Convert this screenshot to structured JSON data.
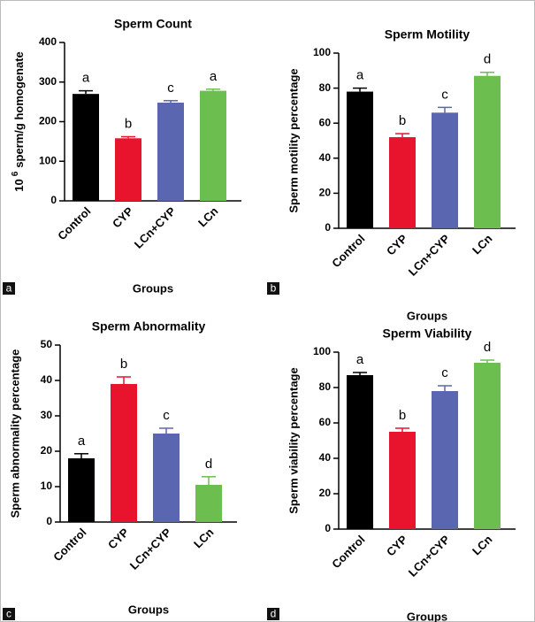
{
  "chart_data": [
    {
      "type": "bar",
      "panel": "a",
      "title": "Sperm Count",
      "ylabel": {
        "base": "10",
        "exponent": "6",
        "text": "sperm/g homogenate"
      },
      "xlabel": "Groups",
      "categories": [
        "Control",
        "CYP",
        "LCn+CYP",
        "LCn"
      ],
      "values": [
        270,
        158,
        248,
        278
      ],
      "errors": [
        8,
        4,
        5,
        4
      ],
      "annotations": [
        "a",
        "b",
        "c",
        "a"
      ],
      "colors": [
        "#000000",
        "#e8132d",
        "#5b66b0",
        "#6cbf4e"
      ],
      "ylim": [
        0,
        400
      ],
      "yticks": [
        0,
        100,
        200,
        300,
        400
      ]
    },
    {
      "type": "bar",
      "panel": "b",
      "title": "Sperm Motility",
      "ylabel": "Sperm motility percentage",
      "xlabel": "Groups",
      "categories": [
        "Control",
        "CYP",
        "LCn+CYP",
        "LCn"
      ],
      "values": [
        78,
        52,
        66,
        87
      ],
      "errors": [
        2,
        2,
        3,
        2
      ],
      "annotations": [
        "a",
        "b",
        "c",
        "d"
      ],
      "colors": [
        "#000000",
        "#e8132d",
        "#5b66b0",
        "#6cbf4e"
      ],
      "ylim": [
        0,
        100
      ],
      "yticks": [
        0,
        20,
        40,
        60,
        80,
        100
      ]
    },
    {
      "type": "bar",
      "panel": "c",
      "title": "Sperm Abnormality",
      "ylabel": "Sperm abnormality percentage",
      "xlabel": "Groups",
      "categories": [
        "Control",
        "CYP",
        "LCn+CYP",
        "LCn"
      ],
      "values": [
        18,
        39,
        25,
        10.5
      ],
      "errors": [
        1.3,
        2,
        1.5,
        2.3
      ],
      "annotations": [
        "a",
        "b",
        "c",
        "d"
      ],
      "colors": [
        "#000000",
        "#e8132d",
        "#5b66b0",
        "#6cbf4e"
      ],
      "ylim": [
        0,
        50
      ],
      "yticks": [
        0,
        10,
        20,
        30,
        40,
        50
      ]
    },
    {
      "type": "bar",
      "panel": "d",
      "title": "Sperm Viability",
      "ylabel": "Sperm viability percentage",
      "xlabel": "Groups",
      "categories": [
        "Control",
        "CYP",
        "LCn+CYP",
        "LCn"
      ],
      "values": [
        87,
        55,
        78,
        94
      ],
      "errors": [
        1.5,
        2,
        3,
        1.5
      ],
      "annotations": [
        "a",
        "b",
        "c",
        "d"
      ],
      "colors": [
        "#000000",
        "#e8132d",
        "#5b66b0",
        "#6cbf4e"
      ],
      "ylim": [
        0,
        100
      ],
      "yticks": [
        0,
        20,
        40,
        60,
        80,
        100
      ]
    }
  ]
}
